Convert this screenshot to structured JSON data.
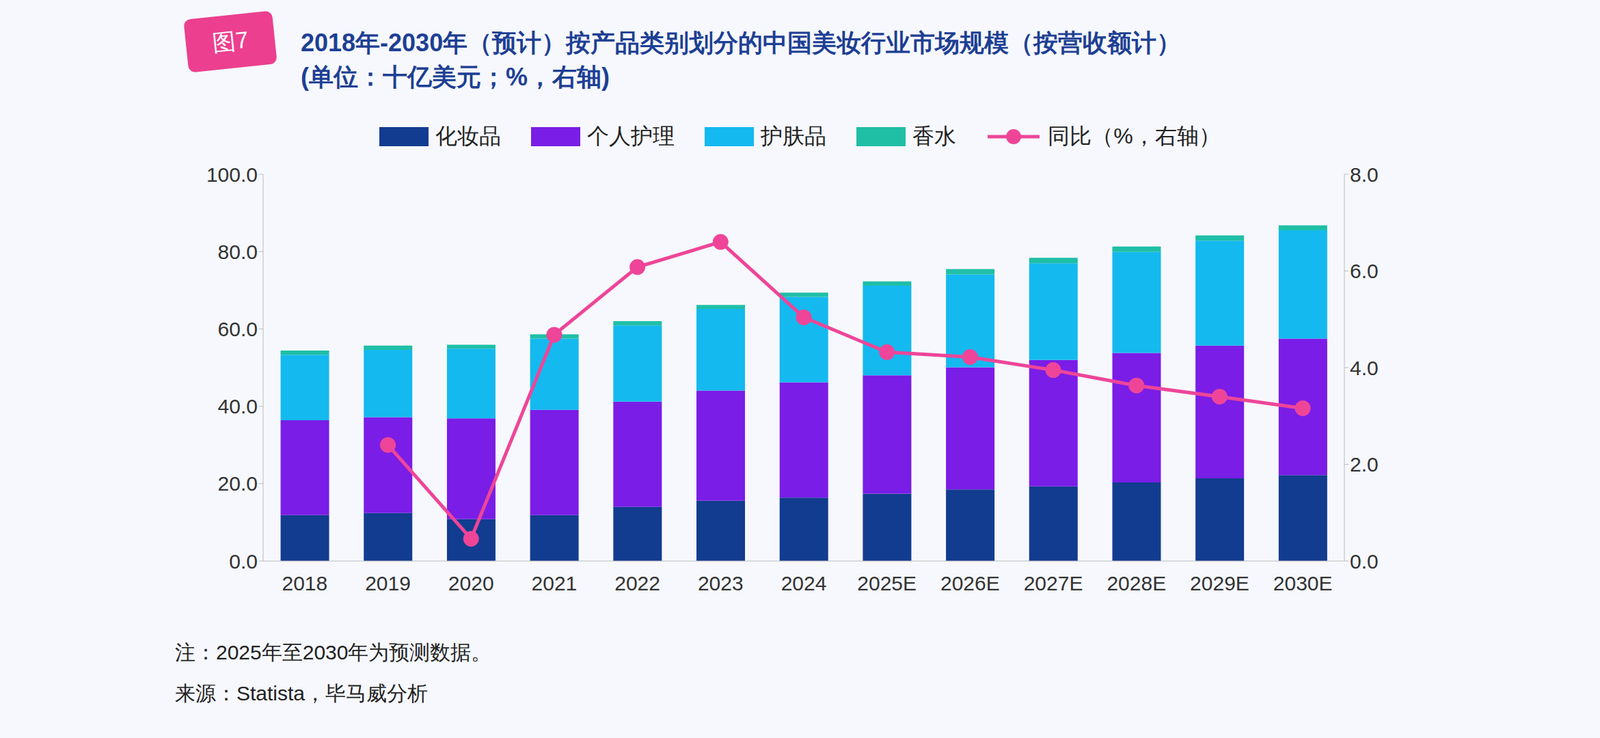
{
  "chart_data": {
    "type": "bar",
    "figure_label": "图7",
    "title": "2018年-2030年（预计）按产品类别划分的中国美妆行业市场规模（按营收额计）",
    "subtitle": "(单位：十亿美元；%，右轴)",
    "categories": [
      "2018",
      "2019",
      "2020",
      "2021",
      "2022",
      "2023",
      "2024",
      "2025E",
      "2026E",
      "2027E",
      "2028E",
      "2029E",
      "2030E"
    ],
    "stacked": true,
    "series": [
      {
        "name": "化妆品",
        "color": "#123c8f",
        "values": [
          11.9,
          12.4,
          10.8,
          11.9,
          14.0,
          15.6,
          16.4,
          17.4,
          18.5,
          19.3,
          20.3,
          21.4,
          22.2
        ]
      },
      {
        "name": "个人护理",
        "color": "#7a1de6",
        "values": [
          24.5,
          24.8,
          26.1,
          27.2,
          27.2,
          28.5,
          29.8,
          30.6,
          31.6,
          32.7,
          33.5,
          34.3,
          35.3
        ]
      },
      {
        "name": "护肤品",
        "color": "#14b9ef",
        "values": [
          16.9,
          17.4,
          18.0,
          18.4,
          19.7,
          21.1,
          22.1,
          23.2,
          24.0,
          25.0,
          26.1,
          27.1,
          28.0
        ]
      },
      {
        "name": "香水",
        "color": "#1fbfa6",
        "values": [
          1.1,
          1.1,
          1.0,
          1.1,
          1.1,
          1.0,
          1.1,
          1.1,
          1.4,
          1.4,
          1.4,
          1.4,
          1.3
        ]
      },
      {
        "name": "同比（%，右轴）",
        "type": "line",
        "axis": "y2",
        "color": "#ee4599",
        "marker": "circle",
        "values": [
          null,
          2.4,
          0.46,
          4.68,
          6.08,
          6.6,
          5.04,
          4.32,
          4.22,
          3.95,
          3.63,
          3.4,
          3.16
        ]
      }
    ],
    "ylim": [
      0,
      100
    ],
    "yticks": [
      {
        "value": 0,
        "label": "0.0"
      },
      {
        "value": 20,
        "label": "20.0"
      },
      {
        "value": 40,
        "label": "40.0"
      },
      {
        "value": 60,
        "label": "60.0"
      },
      {
        "value": 80,
        "label": "80.0"
      },
      {
        "value": 100,
        "label": "100.0"
      }
    ],
    "y2lim": [
      0,
      8
    ],
    "y2ticks": [
      {
        "value": 0,
        "label": "0.0"
      },
      {
        "value": 2,
        "label": "2.0"
      },
      {
        "value": 4,
        "label": "4.0"
      },
      {
        "value": 6,
        "label": "6.0"
      },
      {
        "value": 8,
        "label": "8.0"
      }
    ],
    "grid": false,
    "legend": "top",
    "annotations": [
      "注：2025年至2030年为预测数据。",
      "来源：Statista，毕马威分析"
    ]
  }
}
